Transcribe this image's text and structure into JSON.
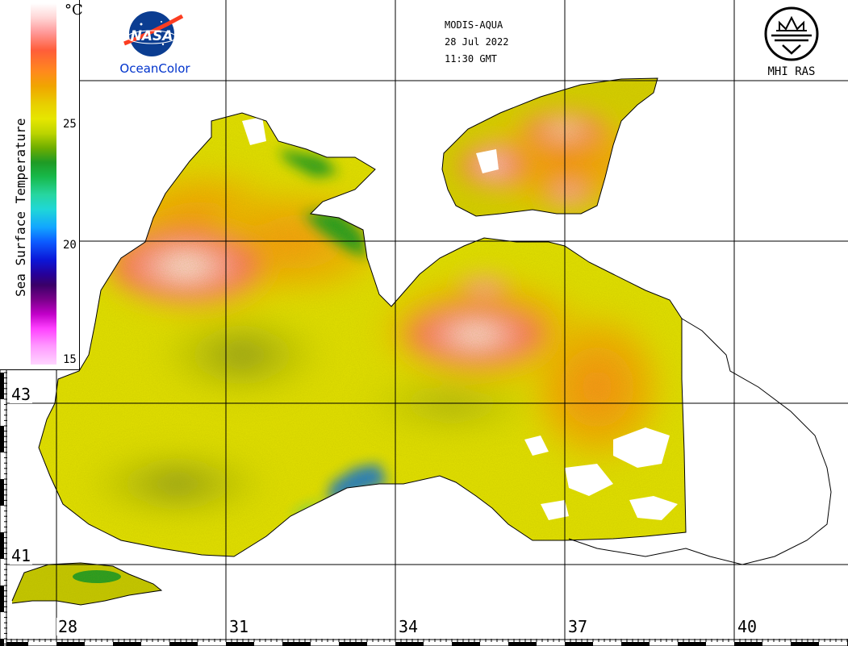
{
  "header": {
    "sensor": "MODIS-AQUA",
    "date": "28 Jul 2022",
    "time": "11:30 GMT"
  },
  "logos": {
    "nasa_wordmark": "NASA",
    "nasa_caption": "OceanColor",
    "mhi_caption": "MHI RAS",
    "nasa_icon": "nasa-meatball-icon",
    "mhi_icon": "mhi-ras-emblem-icon"
  },
  "legend": {
    "title": "Sea Surface Temperature",
    "unit": "°C",
    "ticks": [
      "25",
      "20",
      "15"
    ]
  },
  "axes": {
    "lon_labels": [
      "28",
      "31",
      "34",
      "37",
      "40"
    ],
    "lat_labels": [
      "43",
      "41"
    ]
  },
  "colors": {
    "land": "#ffffff",
    "coast": "#000000",
    "warm": "#ff5d5d",
    "hot": "#ffffff",
    "mid": "#e6e600",
    "cool": "#1f9b24",
    "cold": "#0b17d8"
  }
}
